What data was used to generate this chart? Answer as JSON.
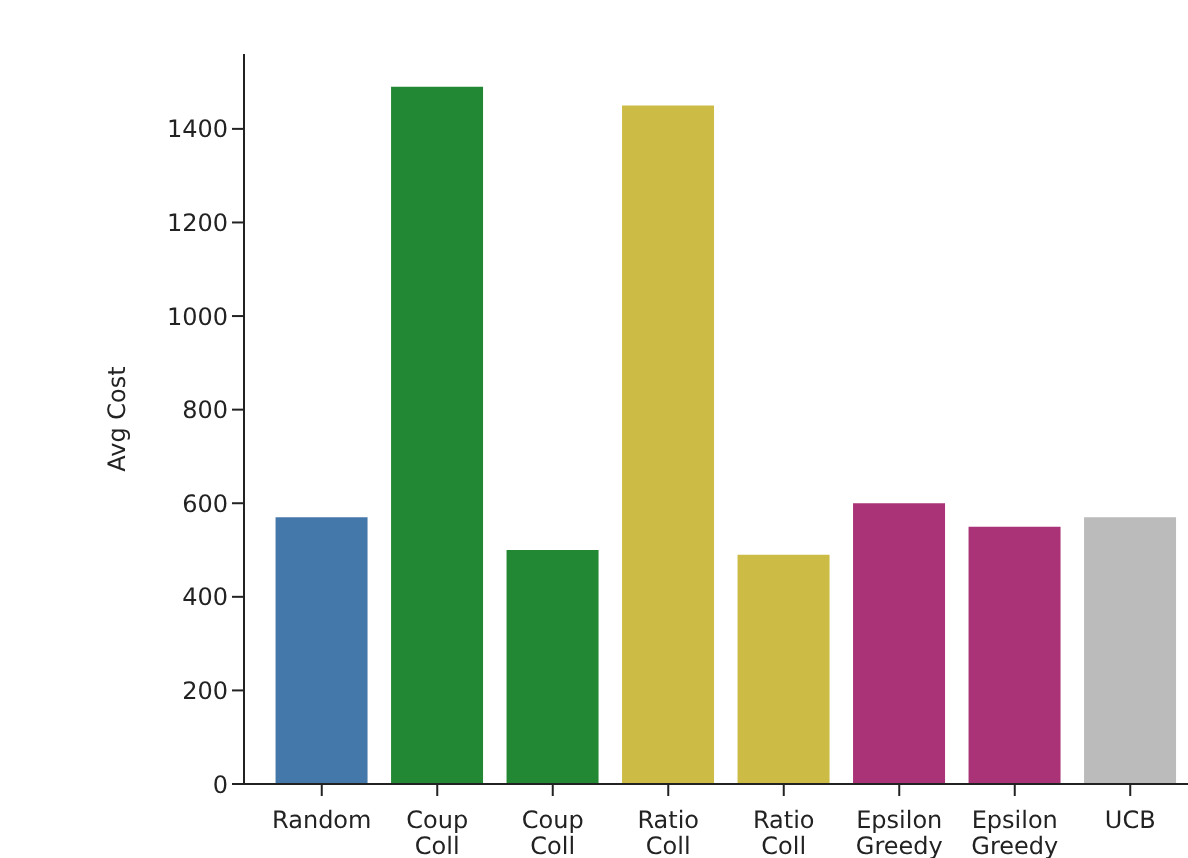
{
  "chart_data": {
    "type": "bar",
    "ylabel": "Avg Cost",
    "categories": [
      "Random",
      "Coup Coll",
      "Coup Coll",
      "Ratio Coll",
      "Ratio Coll",
      "Epsilon Greedy",
      "Epsilon Greedy",
      "UCB"
    ],
    "values": [
      570,
      1490,
      500,
      1450,
      490,
      600,
      550,
      570
    ],
    "colors": [
      "#4477aa",
      "#228833",
      "#228833",
      "#ccbb44",
      "#ccbb44",
      "#aa3377",
      "#aa3377",
      "#bbbbbb"
    ],
    "ylim": [
      0,
      1560
    ],
    "yticks": [
      0,
      200,
      400,
      600,
      800,
      1000,
      1200,
      1400
    ],
    "grid": false
  }
}
